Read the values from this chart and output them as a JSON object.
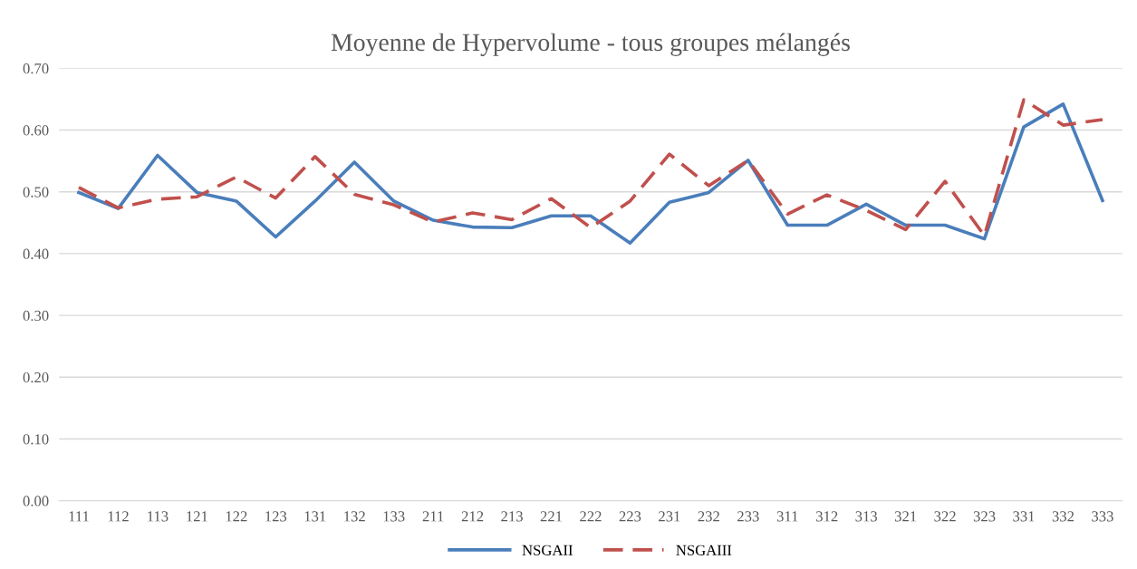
{
  "chart_data": {
    "type": "line",
    "title": "Moyenne de Hypervolume - tous groupes mélangés",
    "categories": [
      "111",
      "112",
      "113",
      "121",
      "122",
      "123",
      "131",
      "132",
      "133",
      "211",
      "212",
      "213",
      "221",
      "222",
      "223",
      "231",
      "232",
      "233",
      "311",
      "312",
      "313",
      "321",
      "322",
      "323",
      "331",
      "332",
      "333"
    ],
    "series": [
      {
        "name": "NSGAII",
        "color": "#4a7ebb",
        "line_style": "solid",
        "values": [
          0.499,
          0.473,
          0.559,
          0.499,
          0.485,
          0.427,
          0.485,
          0.548,
          0.485,
          0.454,
          0.443,
          0.442,
          0.461,
          0.461,
          0.417,
          0.483,
          0.499,
          0.551,
          0.446,
          0.446,
          0.48,
          0.446,
          0.446,
          0.424,
          0.605,
          0.642,
          0.486
        ]
      },
      {
        "name": "NSGAIII",
        "color": "#c0504d",
        "line_style": "dashed",
        "values": [
          0.507,
          0.474,
          0.488,
          0.492,
          0.524,
          0.49,
          0.557,
          0.496,
          0.479,
          0.451,
          0.466,
          0.455,
          0.489,
          0.442,
          0.485,
          0.561,
          0.51,
          0.551,
          0.464,
          0.495,
          0.47,
          0.439,
          0.517,
          0.429,
          0.649,
          0.608,
          0.617
        ]
      }
    ],
    "ylim": [
      0,
      0.7
    ],
    "yticks": [
      {
        "value": 0,
        "label": "0.00"
      },
      {
        "value": 0.1,
        "label": "0.10"
      },
      {
        "value": 0.2,
        "label": "0.20"
      },
      {
        "value": 0.3,
        "label": "0.30"
      },
      {
        "value": 0.4,
        "label": "0.40"
      },
      {
        "value": 0.5,
        "label": "0.50"
      },
      {
        "value": 0.6,
        "label": "0.60"
      },
      {
        "value": 0.7,
        "label": "0.70"
      }
    ],
    "grid": "y",
    "legend": "bottom",
    "marker": "none"
  }
}
